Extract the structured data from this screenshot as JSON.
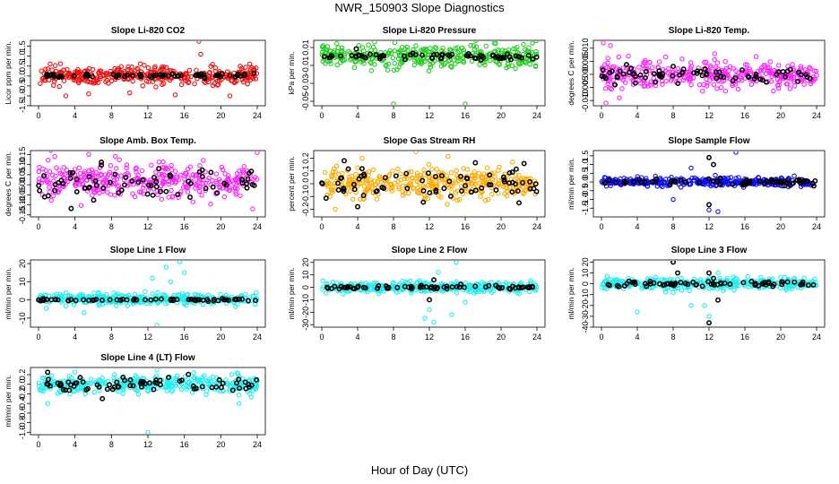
{
  "title": "NWR_150903  Slope Diagnostics",
  "xlabel": "Hour of Day (UTC)",
  "colors": {
    "black": "#000000",
    "red": "#ee1111",
    "green": "#22cc22",
    "magenta": "#ff22ff",
    "orange": "#ffaa00",
    "blue": "#1111ee",
    "cyan": "#22eeee"
  },
  "chart_data": [
    {
      "type": "scatter",
      "title": "Slope Li-820 CO2",
      "ylabel": "Licor ppm per min.",
      "xlim": [
        0,
        24
      ],
      "ylim": [
        -1.5,
        1.8
      ],
      "x_ticks": [
        "0",
        "4",
        "8",
        "12",
        "16",
        "20",
        "24"
      ],
      "y_ticks": [
        "-1.5",
        "-1.0",
        "-0.5",
        "0.0",
        "0.5",
        "1.0",
        "1.5"
      ],
      "series": [
        {
          "color": "red",
          "center": 0.02,
          "spread": 0.22,
          "outliers": [
            [
              17.6,
              1.75
            ],
            [
              17.8,
              1.1
            ],
            [
              5.5,
              -0.9
            ],
            [
              10,
              -0.85
            ],
            [
              15,
              -0.95
            ],
            [
              3,
              -1.0
            ],
            [
              21,
              -1.0
            ]
          ]
        },
        {
          "color": "black",
          "center": 0.02,
          "spread": 0.05,
          "outliers": []
        }
      ]
    },
    {
      "type": "scatter",
      "title": "Slope Li-820 Pressure",
      "ylabel": "kPa per min.",
      "xlim": [
        0,
        24
      ],
      "ylim": [
        -0.055,
        0.018
      ],
      "x_ticks": [
        "0",
        "4",
        "8",
        "12",
        "16",
        "20",
        "24"
      ],
      "y_ticks": [
        "-0.05",
        "-0.03",
        "-0.01",
        "0.01"
      ],
      "series": [
        {
          "color": "green",
          "center": 0.0,
          "spread": 0.006,
          "outliers": [
            [
              8,
              -0.053
            ],
            [
              16,
              -0.053
            ],
            [
              23.5,
              0.015
            ],
            [
              10.5,
              0.012
            ]
          ]
        },
        {
          "color": "black",
          "center": 0.0,
          "spread": 0.002,
          "outliers": []
        }
      ]
    },
    {
      "type": "scatter",
      "title": "Slope Li-820 Temp.",
      "ylabel": "degrees C per min.",
      "xlim": [
        0,
        24
      ],
      "ylim": [
        -0.012,
        0.013
      ],
      "x_ticks": [
        "0",
        "4",
        "8",
        "12",
        "16",
        "20",
        "24"
      ],
      "y_ticks": [
        "-0.010",
        "-0.005",
        "0.000",
        "0.005",
        "0.010"
      ],
      "series": [
        {
          "color": "magenta",
          "center": 0.0,
          "spread": 0.0025,
          "outliers": [
            [
              0.2,
              0.012
            ],
            [
              0.5,
              -0.011
            ],
            [
              1,
              0.011
            ],
            [
              3,
              0.007
            ],
            [
              2,
              -0.009
            ]
          ]
        },
        {
          "color": "black",
          "center": 0.0,
          "spread": 0.0015,
          "outliers": [
            [
              1.5,
              -0.004
            ],
            [
              6,
              -0.003
            ]
          ]
        }
      ]
    },
    {
      "type": "scatter",
      "title": "Slope Amb. Box Temp.",
      "ylabel": "degrees C per min.",
      "xlim": [
        0,
        24
      ],
      "ylim": [
        -0.16,
        0.17
      ],
      "x_ticks": [
        "0",
        "4",
        "8",
        "12",
        "16",
        "20",
        "24"
      ],
      "y_ticks": [
        "-0.15",
        "-0.10",
        "-0.05",
        "0.00",
        "0.05",
        "0.10",
        "0.15"
      ],
      "series": [
        {
          "color": "magenta",
          "center": 0.02,
          "spread": 0.045,
          "outliers": [
            [
              24,
              0.16
            ],
            [
              23.5,
              -0.12
            ]
          ]
        },
        {
          "color": "black",
          "center": 0.0,
          "spread": 0.04,
          "outliers": []
        }
      ]
    },
    {
      "type": "scatter",
      "title": "Slope Gas Stream RH",
      "ylabel": "percent per min.",
      "xlim": [
        0,
        24
      ],
      "ylim": [
        -0.26,
        0.26
      ],
      "x_ticks": [
        "0",
        "4",
        "8",
        "12",
        "16",
        "20",
        "24"
      ],
      "y_ticks": [
        "-0.2",
        "-0.1",
        "0.0",
        "0.1",
        "0.2"
      ],
      "series": [
        {
          "color": "orange",
          "center": 0.0,
          "spread": 0.055,
          "outliers": [
            [
              4.5,
              0.2
            ],
            [
              10.5,
              0.25
            ],
            [
              1.5,
              -0.2
            ],
            [
              14,
              -0.16
            ]
          ]
        },
        {
          "color": "black",
          "center": 0.0,
          "spread": 0.06,
          "outliers": [
            [
              2.5,
              0.18
            ],
            [
              4,
              -0.18
            ],
            [
              22,
              -0.15
            ]
          ]
        }
      ]
    },
    {
      "type": "scatter",
      "title": "Slope Sample Flow",
      "ylabel": "ml/min per min.",
      "xlim": [
        0,
        24
      ],
      "ylim": [
        -2.0,
        1.8
      ],
      "x_ticks": [
        "0",
        "4",
        "8",
        "12",
        "16",
        "20",
        "24"
      ],
      "y_ticks": [
        "-1.5",
        "-1.0",
        "-0.5",
        "0.0",
        "0.5",
        "1.0",
        "1.5"
      ],
      "series": [
        {
          "color": "blue",
          "center": 0.0,
          "spread": 0.12,
          "outliers": [
            [
              15,
              1.7
            ],
            [
              12,
              -1.6
            ],
            [
              13,
              -1.7
            ],
            [
              8,
              -1.0
            ],
            [
              10,
              0.8
            ]
          ]
        },
        {
          "color": "black",
          "center": 0.0,
          "spread": 0.1,
          "outliers": [
            [
              12,
              1.4
            ],
            [
              12.5,
              1.0
            ],
            [
              12,
              -1.3
            ]
          ]
        }
      ]
    },
    {
      "type": "scatter",
      "title": "Slope Line 1 Flow",
      "ylabel": "ml/min per min.",
      "xlim": [
        0,
        24
      ],
      "ylim": [
        -15,
        22
      ],
      "x_ticks": [
        "0",
        "4",
        "8",
        "12",
        "16",
        "20",
        "24"
      ],
      "y_ticks": [
        "-10",
        "0",
        "10",
        "20"
      ],
      "series": [
        {
          "color": "cyan",
          "center": 0.5,
          "spread": 1.5,
          "outliers": [
            [
              15.5,
              21
            ],
            [
              14,
              18
            ],
            [
              13,
              -14
            ],
            [
              5,
              -7
            ],
            [
              16,
              15
            ],
            [
              12.5,
              12
            ],
            [
              14.5,
              10
            ]
          ]
        },
        {
          "color": "black",
          "center": 0.0,
          "spread": 0.3,
          "outliers": []
        }
      ]
    },
    {
      "type": "scatter",
      "title": "Slope Line 2 Flow",
      "ylabel": "ml/min per min.",
      "xlim": [
        0,
        24
      ],
      "ylim": [
        -32,
        22
      ],
      "x_ticks": [
        "0",
        "4",
        "8",
        "12",
        "16",
        "20",
        "24"
      ],
      "y_ticks": [
        "-30",
        "-20",
        "-10",
        "0",
        "10",
        "20"
      ],
      "series": [
        {
          "color": "cyan",
          "center": 0.0,
          "spread": 2.0,
          "outliers": [
            [
              12.5,
              -28
            ],
            [
              11.5,
              -25
            ],
            [
              15,
              20
            ],
            [
              12,
              -18
            ],
            [
              14.5,
              -22
            ],
            [
              16,
              -12
            ],
            [
              13,
              12
            ]
          ]
        },
        {
          "color": "black",
          "center": 0.0,
          "spread": 0.8,
          "outliers": [
            [
              12.5,
              6
            ],
            [
              12,
              -10
            ]
          ]
        }
      ]
    },
    {
      "type": "scatter",
      "title": "Slope Line 3 Flow",
      "ylabel": "ml/min per min.",
      "xlim": [
        0,
        24
      ],
      "ylim": [
        -40,
        22
      ],
      "x_ticks": [
        "0",
        "4",
        "8",
        "12",
        "16",
        "20",
        "24"
      ],
      "y_ticks": [
        "-40",
        "-30",
        "-20",
        "-10",
        "0",
        "10",
        "20"
      ],
      "series": [
        {
          "color": "cyan",
          "center": 0.0,
          "spread": 2.5,
          "outliers": [
            [
              4,
              -26
            ],
            [
              12,
              -30
            ],
            [
              10,
              -20
            ],
            [
              11.5,
              -20
            ],
            [
              13,
              10
            ],
            [
              8,
              -8
            ]
          ]
        },
        {
          "color": "black",
          "center": 0.0,
          "spread": 1.0,
          "outliers": [
            [
              8,
              20
            ],
            [
              8.5,
              10
            ],
            [
              12,
              -36
            ],
            [
              12,
              10
            ],
            [
              12.5,
              5
            ],
            [
              13,
              -15
            ]
          ]
        }
      ]
    },
    {
      "type": "scatter",
      "title": "Slope Line 4 (LT) Flow",
      "ylabel": "ml/min per min.",
      "xlim": [
        0,
        24
      ],
      "ylim": [
        -1.05,
        0.35
      ],
      "x_ticks": [
        "0",
        "4",
        "8",
        "12",
        "16",
        "20",
        "24"
      ],
      "y_ticks": [
        "-1.0",
        "-0.8",
        "-0.6",
        "-0.4",
        "-0.2",
        "0.0",
        "0.2"
      ],
      "series": [
        {
          "color": "cyan",
          "center": 0.0,
          "spread": 0.09,
          "outliers": [
            [
              12,
              -1.0
            ],
            [
              1,
              -0.4
            ],
            [
              13,
              0.3
            ],
            [
              4,
              0.25
            ],
            [
              22,
              -0.4
            ]
          ]
        },
        {
          "color": "black",
          "center": 0.0,
          "spread": 0.09,
          "outliers": [
            [
              1,
              0.25
            ],
            [
              7,
              -0.3
            ]
          ]
        }
      ]
    }
  ]
}
